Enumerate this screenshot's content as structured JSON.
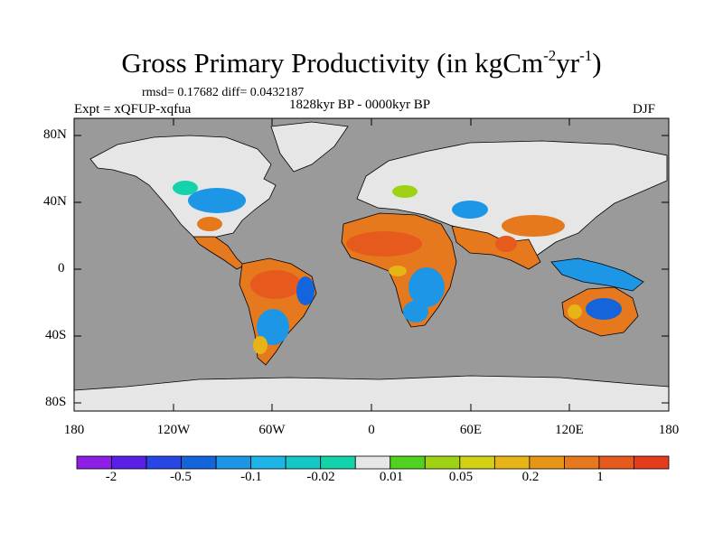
{
  "title": {
    "text": "Gross Primary Productivity (in kgCm",
    "exp1": "-2",
    "mid": "yr",
    "exp2": "-1",
    "end": ")"
  },
  "stats": "rmsd= 0.17682 diff= 0.0432187",
  "experiment": "Expt = xQFUP-xqfua",
  "period": "1828kyr BP - 0000kyr BP",
  "season": "DJF",
  "axes": {
    "y_ticks": [
      "80N",
      "40N",
      "0",
      "40S",
      "80S"
    ],
    "x_ticks": [
      "180",
      "120W",
      "60W",
      "0",
      "60E",
      "120E",
      "180"
    ]
  },
  "colorbar": {
    "colors": [
      "#8c1ee6",
      "#5a1ee6",
      "#2846e6",
      "#1464dc",
      "#1e96e6",
      "#1eb4e6",
      "#14c8c8",
      "#14d2aa",
      "#e6e6e6",
      "#50d21e",
      "#a0d214",
      "#d2d214",
      "#e6b414",
      "#e69614",
      "#e6781e",
      "#e65a1e",
      "#e63c1e"
    ],
    "labels": [
      "-2",
      "-0.5",
      "-0.1",
      "-0.02",
      "0.01",
      "0.05",
      "0.2",
      "1"
    ]
  },
  "map_colors": {
    "ocean": "#9a9a9a",
    "no_change": "#e6e6e6",
    "warm": "#e6781e",
    "hot": "#e65a1e",
    "amber": "#e6b414",
    "yellow_green": "#a0d214",
    "cool": "#1e96e6",
    "cold": "#1464dc",
    "teal": "#14d2aa"
  }
}
